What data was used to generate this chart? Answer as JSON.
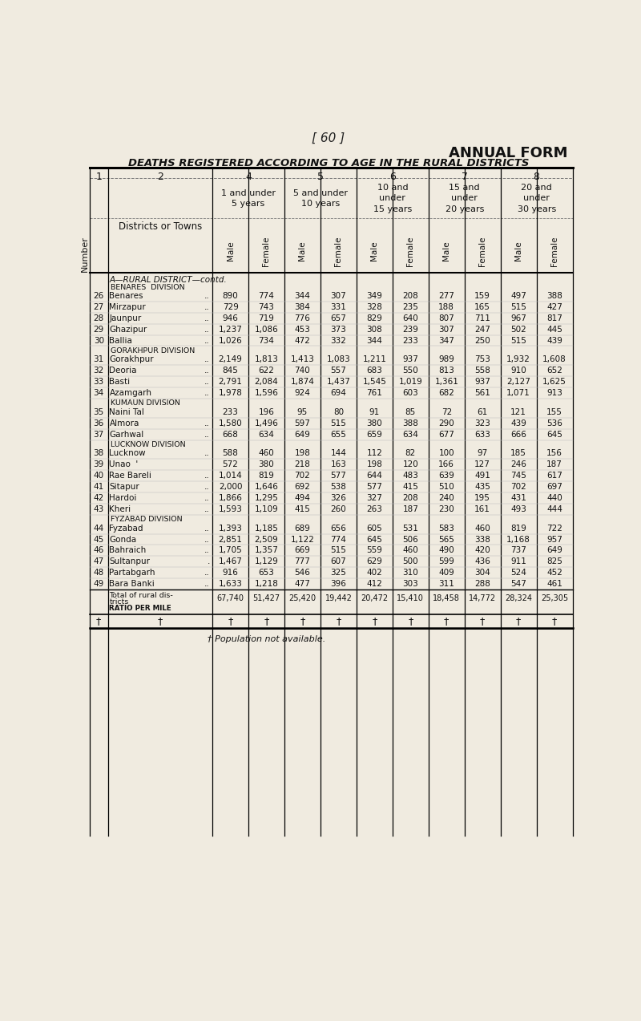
{
  "page_num": "[ 60 ]",
  "title": "ANNUAL FORM",
  "subtitle": "DEATHS REGISTERED ACCORDING TO AGE IN THE RURAL DISTRICTS",
  "bg_color": "#f0ebe0",
  "col_nums": [
    "1",
    "2",
    "4",
    "5",
    "6",
    "7",
    "8"
  ],
  "age_headers": [
    "1 and under\n5 years",
    "5 and under\n10 years",
    "10 and\nunder\n15 years",
    "15 and\nunder\n20 years",
    "20 and\nunder\n30 years"
  ],
  "sections": [
    {
      "header": "A—RURAL DISTRICT—contd.",
      "subsections": [
        {
          "subheader": "BENARES  DIVISION",
          "rows": [
            {
              "num": "26",
              "name": "Benares",
              "dots": "..",
              "vals": [
                890,
                774,
                344,
                307,
                349,
                208,
                277,
                159,
                497,
                388
              ]
            },
            {
              "num": "27",
              "name": "Mirzapur",
              "dots": "..",
              "vals": [
                729,
                743,
                384,
                331,
                328,
                235,
                188,
                165,
                515,
                427
              ]
            },
            {
              "num": "28",
              "name": "Jaunpur",
              "dots": "..",
              "vals": [
                946,
                719,
                776,
                657,
                829,
                640,
                807,
                711,
                967,
                817
              ]
            },
            {
              "num": "29",
              "name": "Ghazipur",
              "dots": "..",
              "vals": [
                1237,
                1086,
                453,
                373,
                308,
                239,
                307,
                247,
                502,
                445
              ]
            },
            {
              "num": "30",
              "name": "Ballia",
              "dots": "..",
              "vals": [
                1026,
                734,
                472,
                332,
                344,
                233,
                347,
                250,
                515,
                439
              ]
            }
          ]
        },
        {
          "subheader": "GORAKHPUR DIVISION",
          "rows": [
            {
              "num": "31",
              "name": "Gorakhpur",
              "dots": "..",
              "vals": [
                2149,
                1813,
                1413,
                1083,
                1211,
                937,
                989,
                753,
                1932,
                1608
              ]
            },
            {
              "num": "32",
              "name": "Deoria",
              "dots": "..",
              "vals": [
                845,
                622,
                740,
                557,
                683,
                550,
                813,
                558,
                910,
                652
              ]
            },
            {
              "num": "33",
              "name": "Basti",
              "dots": "..",
              "vals": [
                2791,
                2084,
                1874,
                1437,
                1545,
                1019,
                1361,
                937,
                2127,
                1625
              ]
            },
            {
              "num": "34",
              "name": "Azamgarh",
              "dots": "..",
              "vals": [
                1978,
                1596,
                924,
                694,
                761,
                603,
                682,
                561,
                1071,
                913
              ]
            }
          ]
        },
        {
          "subheader": "KUMAUN DIVISION",
          "rows": [
            {
              "num": "35",
              "name": "Naini Tal",
              "dots": "",
              "vals": [
                233,
                196,
                95,
                80,
                91,
                85,
                72,
                61,
                121,
                155
              ]
            },
            {
              "num": "36",
              "name": "Almora",
              "dots": "..",
              "vals": [
                1580,
                1496,
                597,
                515,
                380,
                388,
                290,
                323,
                439,
                536
              ]
            },
            {
              "num": "37",
              "name": "Garhwal",
              "dots": "..",
              "vals": [
                668,
                634,
                649,
                655,
                659,
                634,
                677,
                633,
                666,
                645
              ]
            }
          ]
        },
        {
          "subheader": "LUCKNOW DIVISION",
          "rows": [
            {
              "num": "38",
              "name": "Lucknow",
              "dots": "..",
              "vals": [
                588,
                460,
                198,
                144,
                112,
                82,
                100,
                97,
                185,
                156
              ]
            },
            {
              "num": "39",
              "name": "Unao  '",
              "dots": "",
              "vals": [
                572,
                380,
                218,
                163,
                198,
                120,
                166,
                127,
                246,
                187
              ]
            },
            {
              "num": "40",
              "name": "Rae Bareli",
              "dots": "..",
              "vals": [
                1014,
                819,
                702,
                577,
                644,
                483,
                639,
                491,
                745,
                617
              ]
            },
            {
              "num": "41",
              "name": "Sitapur",
              "dots": "..",
              "vals": [
                2000,
                1646,
                692,
                538,
                577,
                415,
                510,
                435,
                702,
                697
              ]
            },
            {
              "num": "42",
              "name": "Hardoi",
              "dots": "..",
              "vals": [
                1866,
                1295,
                494,
                326,
                327,
                208,
                240,
                195,
                431,
                440
              ]
            },
            {
              "num": "43",
              "name": "Kheri",
              "dots": "..",
              "vals": [
                1593,
                1109,
                415,
                260,
                263,
                187,
                230,
                161,
                493,
                444
              ]
            }
          ]
        },
        {
          "subheader": "FYZABAD DIVISION",
          "rows": [
            {
              "num": "44",
              "name": "Fyzabad",
              "dots": "..",
              "vals": [
                1393,
                1185,
                689,
                656,
                605,
                531,
                583,
                460,
                819,
                722
              ]
            },
            {
              "num": "45",
              "name": "Gonda",
              "dots": "..",
              "vals": [
                2851,
                2509,
                1122,
                774,
                645,
                506,
                565,
                338,
                1168,
                957
              ]
            },
            {
              "num": "46",
              "name": "Bahraich",
              "dots": "..",
              "vals": [
                1705,
                1357,
                669,
                515,
                559,
                460,
                490,
                420,
                737,
                649
              ]
            },
            {
              "num": "47",
              "name": "Sultanpur",
              "dots": ".",
              "vals": [
                1467,
                1129,
                777,
                607,
                629,
                500,
                599,
                436,
                911,
                825
              ]
            },
            {
              "num": "48",
              "name": "Partabgarh",
              "dots": "..",
              "vals": [
                916,
                653,
                546,
                325,
                402,
                310,
                409,
                304,
                524,
                452
              ]
            },
            {
              "num": "49",
              "name": "Bara Banki",
              "dots": "..",
              "vals": [
                1633,
                1218,
                477,
                396,
                412,
                303,
                311,
                288,
                547,
                461
              ]
            }
          ]
        }
      ]
    }
  ],
  "total_vals": [
    67740,
    51427,
    25420,
    19442,
    20472,
    15410,
    18458,
    14772,
    28324,
    25305
  ],
  "footnote": "† Population not available."
}
